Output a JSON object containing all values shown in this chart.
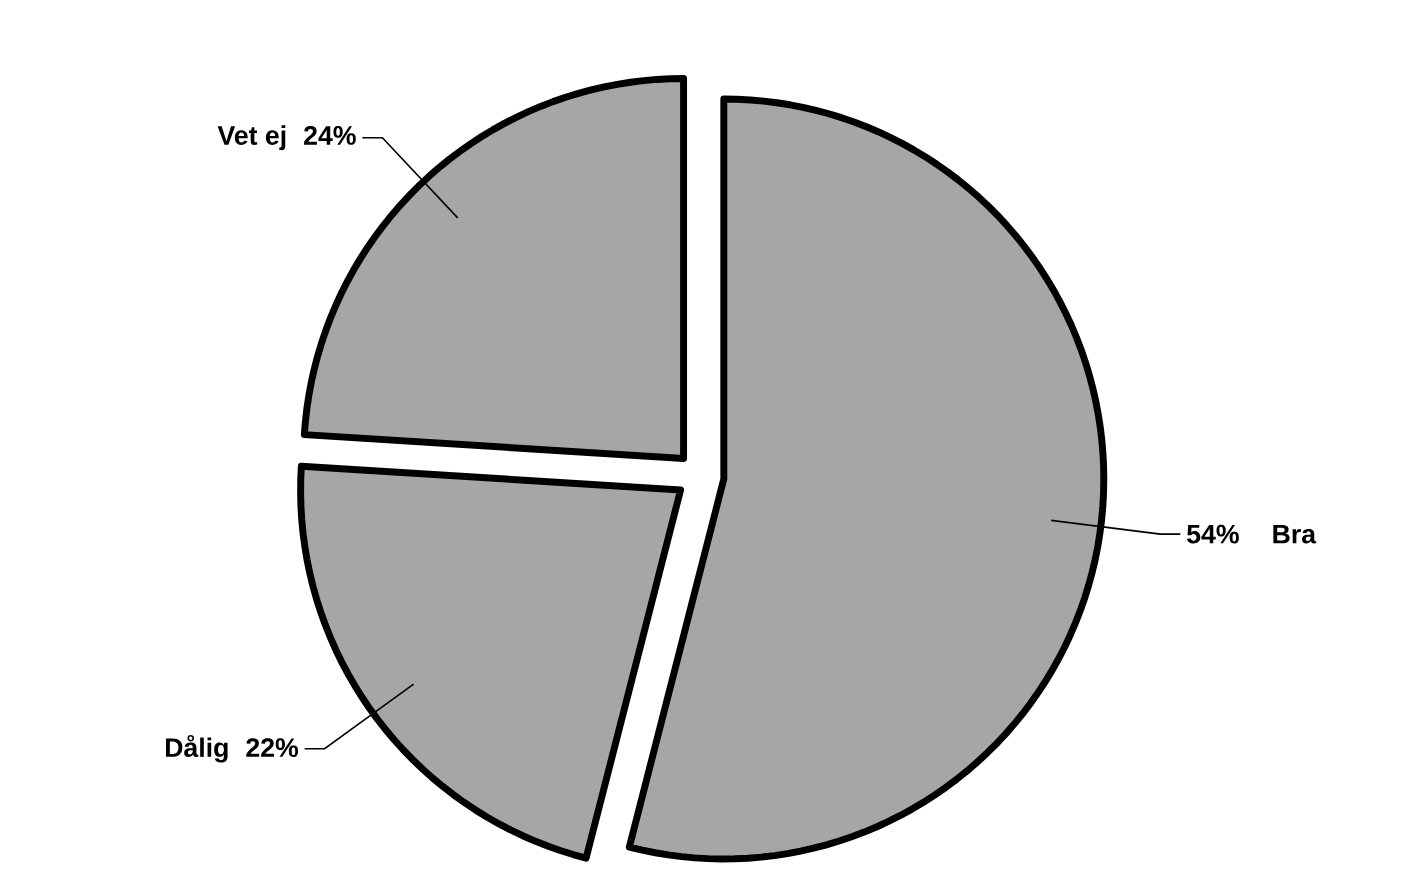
{
  "chart_data": {
    "type": "pie",
    "categories": [
      "Bra",
      "Dålig",
      "Vet ej"
    ],
    "values": [
      54,
      22,
      24
    ],
    "value_labels": [
      "54%",
      "22%",
      "24%"
    ],
    "colors": [
      "#a6a6a6",
      "#a6a6a6",
      "#a6a6a6"
    ]
  }
}
